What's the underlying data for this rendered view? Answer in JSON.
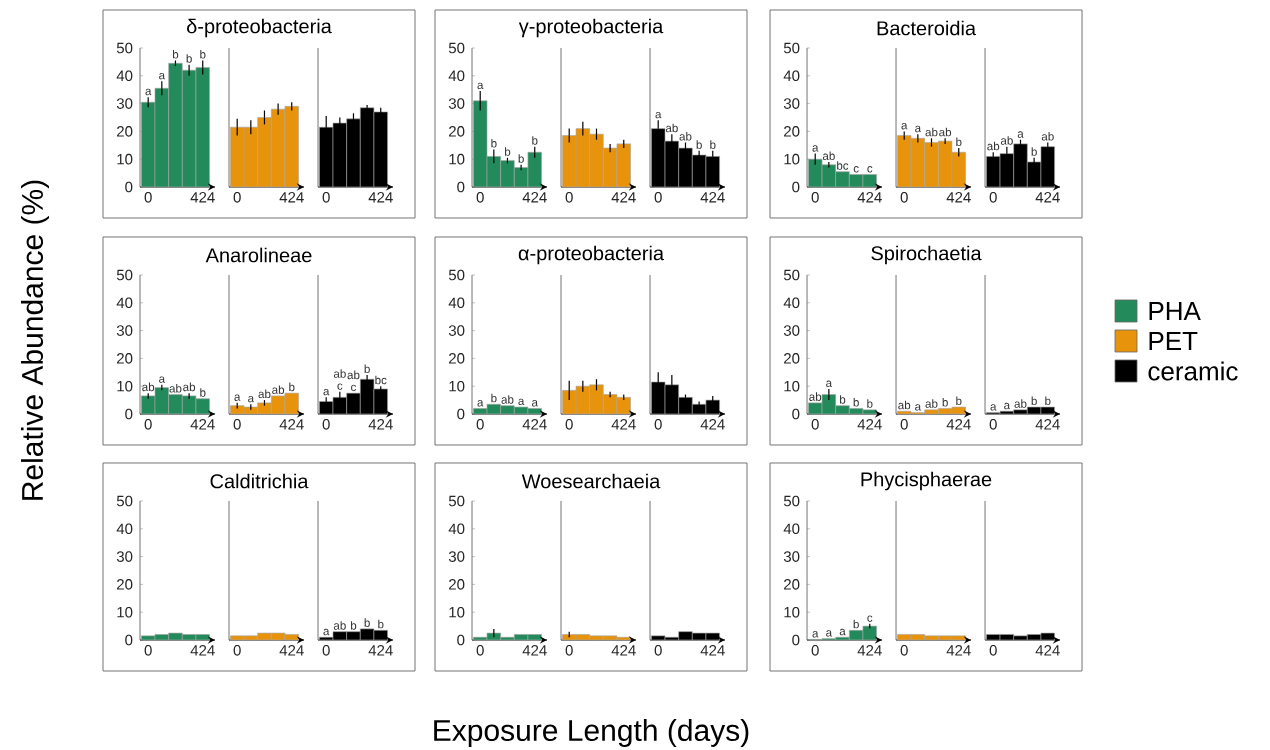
{
  "chart_data": [
    {
      "type": "bar",
      "categories": [
        "0",
        null,
        null,
        null,
        "424"
      ],
      "ylim": [
        0,
        50
      ],
      "yticks": [
        0,
        10,
        20,
        30,
        40,
        50
      ],
      "series": [
        {
          "color": "#238b5b",
          "values": [
            30.5,
            35.5,
            44.5,
            42,
            43
          ],
          "errors": [
            1.8,
            2.5,
            1,
            2,
            2.5
          ],
          "value_labels": [
            "a",
            "a",
            "b",
            "b",
            "b"
          ]
        }
      ]
    },
    {
      "type": "bar",
      "title": "δ-proteobacteria",
      "tick_labels": "x",
      "categories": [
        "0",
        null,
        null,
        null,
        "424"
      ],
      "ylim": [
        0,
        50
      ],
      "series": [
        {
          "color": "#e8930c",
          "values": [
            21.5,
            21.5,
            25,
            28,
            29
          ],
          "errors": [
            3,
            2.5,
            2.5,
            2,
            1.5
          ]
        }
      ]
    },
    {
      "type": "bar",
      "tick_labels": "x",
      "categories": [
        "0",
        null,
        null,
        null,
        "424"
      ],
      "ylim": [
        0,
        50
      ],
      "series": [
        {
          "color": "#000000",
          "values": [
            21.5,
            23,
            24.5,
            28.5,
            27
          ],
          "errors": [
            4,
            2,
            2,
            1,
            1.5
          ]
        }
      ]
    },
    {
      "type": "bar",
      "categories": [
        "0",
        null,
        null,
        null,
        "424"
      ],
      "ylim": [
        0,
        50
      ],
      "yticks": [
        0,
        10,
        20,
        30,
        40,
        50
      ],
      "series": [
        {
          "color": "#238b5b",
          "values": [
            31,
            11,
            9.5,
            7,
            12.5
          ],
          "errors": [
            3.5,
            2.5,
            1,
            1,
            2
          ],
          "value_labels": [
            "a",
            "b",
            "b",
            "b",
            "b"
          ]
        }
      ]
    },
    {
      "type": "bar",
      "title": "γ-proteobacteria",
      "tick_labels": "x",
      "categories": [
        "0",
        null,
        null,
        null,
        "424"
      ],
      "ylim": [
        0,
        50
      ],
      "series": [
        {
          "color": "#e8930c",
          "values": [
            18.5,
            21,
            19,
            14,
            15.5
          ],
          "errors": [
            2.5,
            2.5,
            2,
            1.5,
            1.5
          ]
        }
      ]
    },
    {
      "type": "bar",
      "tick_labels": "x",
      "categories": [
        "0",
        null,
        null,
        null,
        "424"
      ],
      "ylim": [
        0,
        50
      ],
      "series": [
        {
          "color": "#000000",
          "values": [
            21,
            16.5,
            14,
            11.5,
            11
          ],
          "errors": [
            3,
            2.5,
            2,
            1.5,
            2
          ],
          "value_labels": [
            "a",
            "ab",
            "ab",
            "b",
            "b"
          ]
        }
      ]
    },
    {
      "type": "bar",
      "categories": [
        "0",
        null,
        null,
        null,
        "424"
      ],
      "ylim": [
        0,
        50
      ],
      "yticks": [
        0,
        10,
        20,
        30,
        40,
        50
      ],
      "series": [
        {
          "color": "#238b5b",
          "values": [
            10,
            8,
            5.5,
            4.5,
            4.5
          ],
          "errors": [
            2,
            1,
            null,
            null,
            null
          ],
          "value_labels": [
            "a",
            "ab",
            "bc",
            "c",
            "c"
          ]
        }
      ]
    },
    {
      "type": "bar",
      "title": "Bacteroidia",
      "tick_labels": "x",
      "categories": [
        "0",
        null,
        null,
        null,
        "424"
      ],
      "ylim": [
        0,
        50
      ],
      "series": [
        {
          "color": "#e8930c",
          "values": [
            18.5,
            17.5,
            16,
            16.5,
            12.5
          ],
          "errors": [
            1.5,
            1.5,
            1.5,
            1,
            1.5
          ],
          "value_labels": [
            "a",
            "a",
            "ab",
            "ab",
            "b"
          ]
        }
      ]
    },
    {
      "type": "bar",
      "tick_labels": "x",
      "categories": [
        "0",
        null,
        null,
        null,
        "424"
      ],
      "ylim": [
        0,
        50
      ],
      "series": [
        {
          "color": "#000000",
          "values": [
            11,
            12,
            15.5,
            9,
            14.5
          ],
          "errors": [
            1.5,
            2.5,
            1.5,
            1.5,
            1.5
          ],
          "value_labels": [
            "ab",
            "ab",
            "a",
            "b",
            "ab"
          ]
        }
      ]
    },
    {
      "type": "bar",
      "ylabel": "Relative Abundance (%)",
      "categories": [
        "0",
        null,
        null,
        null,
        "424"
      ],
      "ylim": [
        0,
        50
      ],
      "yticks": [
        0,
        10,
        20,
        30,
        40,
        50
      ],
      "series": [
        {
          "color": "#238b5b",
          "values": [
            6.5,
            9.5,
            7,
            6.5,
            5.5
          ],
          "errors": [
            1,
            1,
            null,
            1,
            null
          ],
          "value_labels": [
            "ab",
            "a",
            "ab",
            "ab",
            "b"
          ]
        }
      ]
    },
    {
      "type": "bar",
      "title": "Anarolineae",
      "tick_labels": "x",
      "categories": [
        "0",
        null,
        null,
        null,
        "424"
      ],
      "ylim": [
        0,
        50
      ],
      "series": [
        {
          "color": "#e8930c",
          "values": [
            3,
            2.5,
            4,
            6.5,
            7.5
          ],
          "errors": [
            1,
            1,
            1,
            null,
            null
          ],
          "value_labels": [
            "a",
            "a",
            "ab",
            "ab",
            "b"
          ]
        }
      ]
    },
    {
      "type": "bar",
      "tick_labels": "x",
      "categories": [
        "0",
        null,
        null,
        null,
        "424"
      ],
      "ylim": [
        0,
        50
      ],
      "series": [
        {
          "color": "#000000",
          "values": [
            4.5,
            6,
            7.5,
            12.5,
            9
          ],
          "errors": [
            1.5,
            2,
            null,
            1.5,
            1
          ],
          "value_labels": [
            "a",
            "ab c",
            "ab c",
            "b",
            "bc"
          ]
        }
      ]
    },
    {
      "type": "bar",
      "categories": [
        "0",
        null,
        null,
        null,
        "424"
      ],
      "ylim": [
        0,
        50
      ],
      "yticks": [
        0,
        10,
        20,
        30,
        40,
        50
      ],
      "series": [
        {
          "color": "#238b5b",
          "values": [
            2,
            3.5,
            3,
            2.5,
            2
          ],
          "value_labels": [
            "a",
            "b",
            "ab",
            "a",
            "a"
          ]
        }
      ]
    },
    {
      "type": "bar",
      "title": "α-proteobacteria",
      "tick_labels": "x",
      "categories": [
        "0",
        null,
        null,
        null,
        "424"
      ],
      "ylim": [
        0,
        50
      ],
      "series": [
        {
          "color": "#e8930c",
          "values": [
            8.5,
            10,
            10.5,
            7,
            6
          ],
          "errors": [
            3.5,
            2,
            2,
            1,
            1
          ]
        }
      ]
    },
    {
      "type": "bar",
      "tick_labels": "x",
      "categories": [
        "0",
        null,
        null,
        null,
        "424"
      ],
      "ylim": [
        0,
        50
      ],
      "series": [
        {
          "color": "#000000",
          "values": [
            11.5,
            10.5,
            6,
            3.5,
            5
          ],
          "errors": [
            3.5,
            3.5,
            1,
            1,
            1.5
          ]
        }
      ]
    },
    {
      "type": "bar",
      "legend": "right",
      "categories": [
        "0",
        null,
        null,
        null,
        "424"
      ],
      "ylim": [
        0,
        50
      ],
      "yticks": [
        0,
        10,
        20,
        30,
        40,
        50
      ],
      "series": [
        {
          "name": "PHA",
          "color": "#238b5b",
          "values": [
            4,
            7,
            3,
            2,
            1.5
          ],
          "errors": [
            null,
            2,
            null,
            null,
            null
          ],
          "value_labels": [
            "ab",
            "a",
            "b",
            "b",
            "b"
          ]
        }
      ]
    },
    {
      "type": "bar",
      "title": "Spirochaetia",
      "legend": "right",
      "tick_labels": "x",
      "categories": [
        "0",
        null,
        null,
        null,
        "424"
      ],
      "ylim": [
        0,
        50
      ],
      "series": [
        {
          "name": "PET",
          "color": "#e8930c",
          "values": [
            1,
            0.5,
            1.5,
            2,
            2.5
          ],
          "value_labels": [
            "ab",
            "a",
            "ab",
            "b",
            "b"
          ]
        }
      ]
    },
    {
      "type": "bar",
      "legend": "right",
      "tick_labels": "x",
      "categories": [
        "0",
        null,
        null,
        null,
        "424"
      ],
      "ylim": [
        0,
        50
      ],
      "series": [
        {
          "name": "ceramic",
          "color": "#000000",
          "values": [
            0.5,
            1,
            1.5,
            2.5,
            2.5
          ],
          "value_labels": [
            "a",
            "a",
            "ab",
            "b",
            "b"
          ]
        }
      ]
    },
    {
      "type": "bar",
      "categories": [
        "0",
        null,
        null,
        null,
        "424"
      ],
      "ylim": [
        0,
        50
      ],
      "yticks": [
        0,
        10,
        20,
        30,
        40,
        50
      ],
      "series": [
        {
          "color": "#238b5b",
          "values": [
            1.5,
            2,
            2.5,
            2,
            2
          ]
        }
      ]
    },
    {
      "type": "bar",
      "title": "Calditrichia",
      "tick_labels": "x",
      "categories": [
        "0",
        null,
        null,
        null,
        "424"
      ],
      "ylim": [
        0,
        50
      ],
      "series": [
        {
          "color": "#e8930c",
          "values": [
            1.5,
            1.5,
            2.5,
            2.5,
            2
          ]
        }
      ]
    },
    {
      "type": "bar",
      "tick_labels": "x",
      "categories": [
        "0",
        null,
        null,
        null,
        "424"
      ],
      "ylim": [
        0,
        50
      ],
      "series": [
        {
          "color": "#000000",
          "values": [
            1,
            3,
            3,
            4,
            3.5
          ],
          "value_labels": [
            "a",
            "ab",
            "b",
            "b",
            "b"
          ]
        }
      ]
    },
    {
      "type": "bar",
      "categories": [
        "0",
        null,
        null,
        null,
        "424"
      ],
      "ylim": [
        0,
        50
      ],
      "yticks": [
        0,
        10,
        20,
        30,
        40,
        50
      ],
      "series": [
        {
          "color": "#238b5b",
          "values": [
            1,
            2.5,
            1,
            2,
            2
          ],
          "errors": [
            null,
            1.5,
            null,
            null,
            null
          ]
        }
      ]
    },
    {
      "type": "bar",
      "title": "Woesearchaeia",
      "xlabel": "Exposure Length (days)",
      "tick_labels": "x",
      "categories": [
        "0",
        null,
        null,
        null,
        "424"
      ],
      "ylim": [
        0,
        50
      ],
      "series": [
        {
          "color": "#e8930c",
          "values": [
            2,
            2,
            1.5,
            1.5,
            1
          ],
          "errors": [
            1,
            null,
            null,
            null,
            null
          ]
        }
      ]
    },
    {
      "type": "bar",
      "tick_labels": "x",
      "categories": [
        "0",
        null,
        null,
        null,
        "424"
      ],
      "ylim": [
        0,
        50
      ],
      "series": [
        {
          "color": "#000000",
          "values": [
            1.5,
            1,
            3,
            2.5,
            2.5
          ]
        }
      ]
    },
    {
      "type": "bar",
      "categories": [
        "0",
        null,
        null,
        null,
        "424"
      ],
      "ylim": [
        0,
        50
      ],
      "yticks": [
        0,
        10,
        20,
        30,
        40,
        50
      ],
      "series": [
        {
          "color": "#238b5b",
          "values": [
            0.2,
            0.5,
            1,
            3.5,
            5
          ],
          "errors": [
            null,
            null,
            null,
            null,
            0.8
          ],
          "value_labels": [
            "a",
            "a",
            "a",
            "b",
            "c"
          ]
        }
      ]
    },
    {
      "type": "bar",
      "title": "Phycisphaerae",
      "tick_labels": "x",
      "categories": [
        "0",
        null,
        null,
        null,
        "424"
      ],
      "ylim": [
        0,
        50
      ],
      "series": [
        {
          "color": "#e8930c",
          "values": [
            2,
            2,
            1.5,
            1.5,
            1.5
          ]
        }
      ]
    },
    {
      "type": "bar",
      "tick_labels": "x",
      "categories": [
        "0",
        null,
        null,
        null,
        "424"
      ],
      "ylim": [
        0,
        50
      ],
      "series": [
        {
          "color": "#000000",
          "values": [
            2,
            2,
            1.5,
            2,
            2.5
          ]
        }
      ]
    }
  ]
}
